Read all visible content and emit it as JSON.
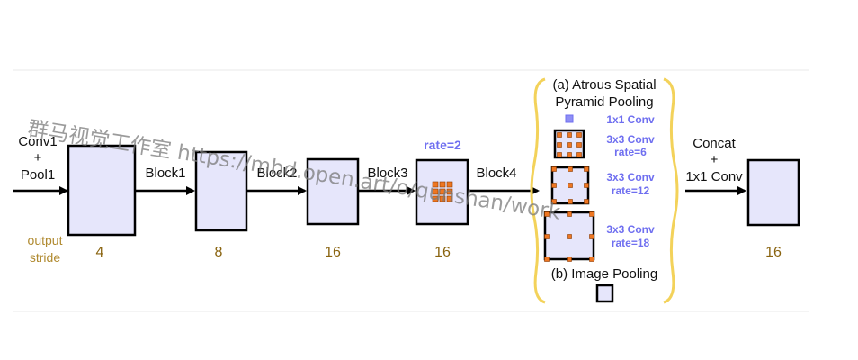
{
  "input": {
    "label_line1": "Conv1",
    "label_line2": "+",
    "label_line3": "Pool1"
  },
  "output_stride_label": {
    "line1": "output",
    "line2": "stride"
  },
  "blocks": [
    {
      "arrow_label": "Block1",
      "stride": "4"
    },
    {
      "arrow_label": "Block2",
      "stride": "8"
    },
    {
      "arrow_label": "Block3",
      "stride": "16"
    },
    {
      "arrow_label": "Block4",
      "stride": "16"
    }
  ],
  "rate_label": "rate=2",
  "aspp": {
    "title_line1": "(a) Atrous Spatial",
    "title_line2": "Pyramid Pooling",
    "branches": [
      {
        "conv": "1x1 Conv",
        "rate": ""
      },
      {
        "conv": "3x3 Conv",
        "rate": "rate=6"
      },
      {
        "conv": "3x3 Conv",
        "rate": "rate=12"
      },
      {
        "conv": "3x3 Conv",
        "rate": "rate=18"
      }
    ],
    "image_pooling": "(b) Image Pooling"
  },
  "concat": {
    "line1": "Concat",
    "line2": "+",
    "line3": "1x1 Conv"
  },
  "final_stride": "16",
  "watermark": "群马视觉工作室 https://mbd.open.art/o/qunshan/work",
  "colors": {
    "block_fill": "#e6e6fb",
    "kernel_dot": "#ee7621",
    "aspp_accent": "#6f6ff0",
    "brace": "#f3d25a",
    "stride_text": "#8a6410"
  }
}
